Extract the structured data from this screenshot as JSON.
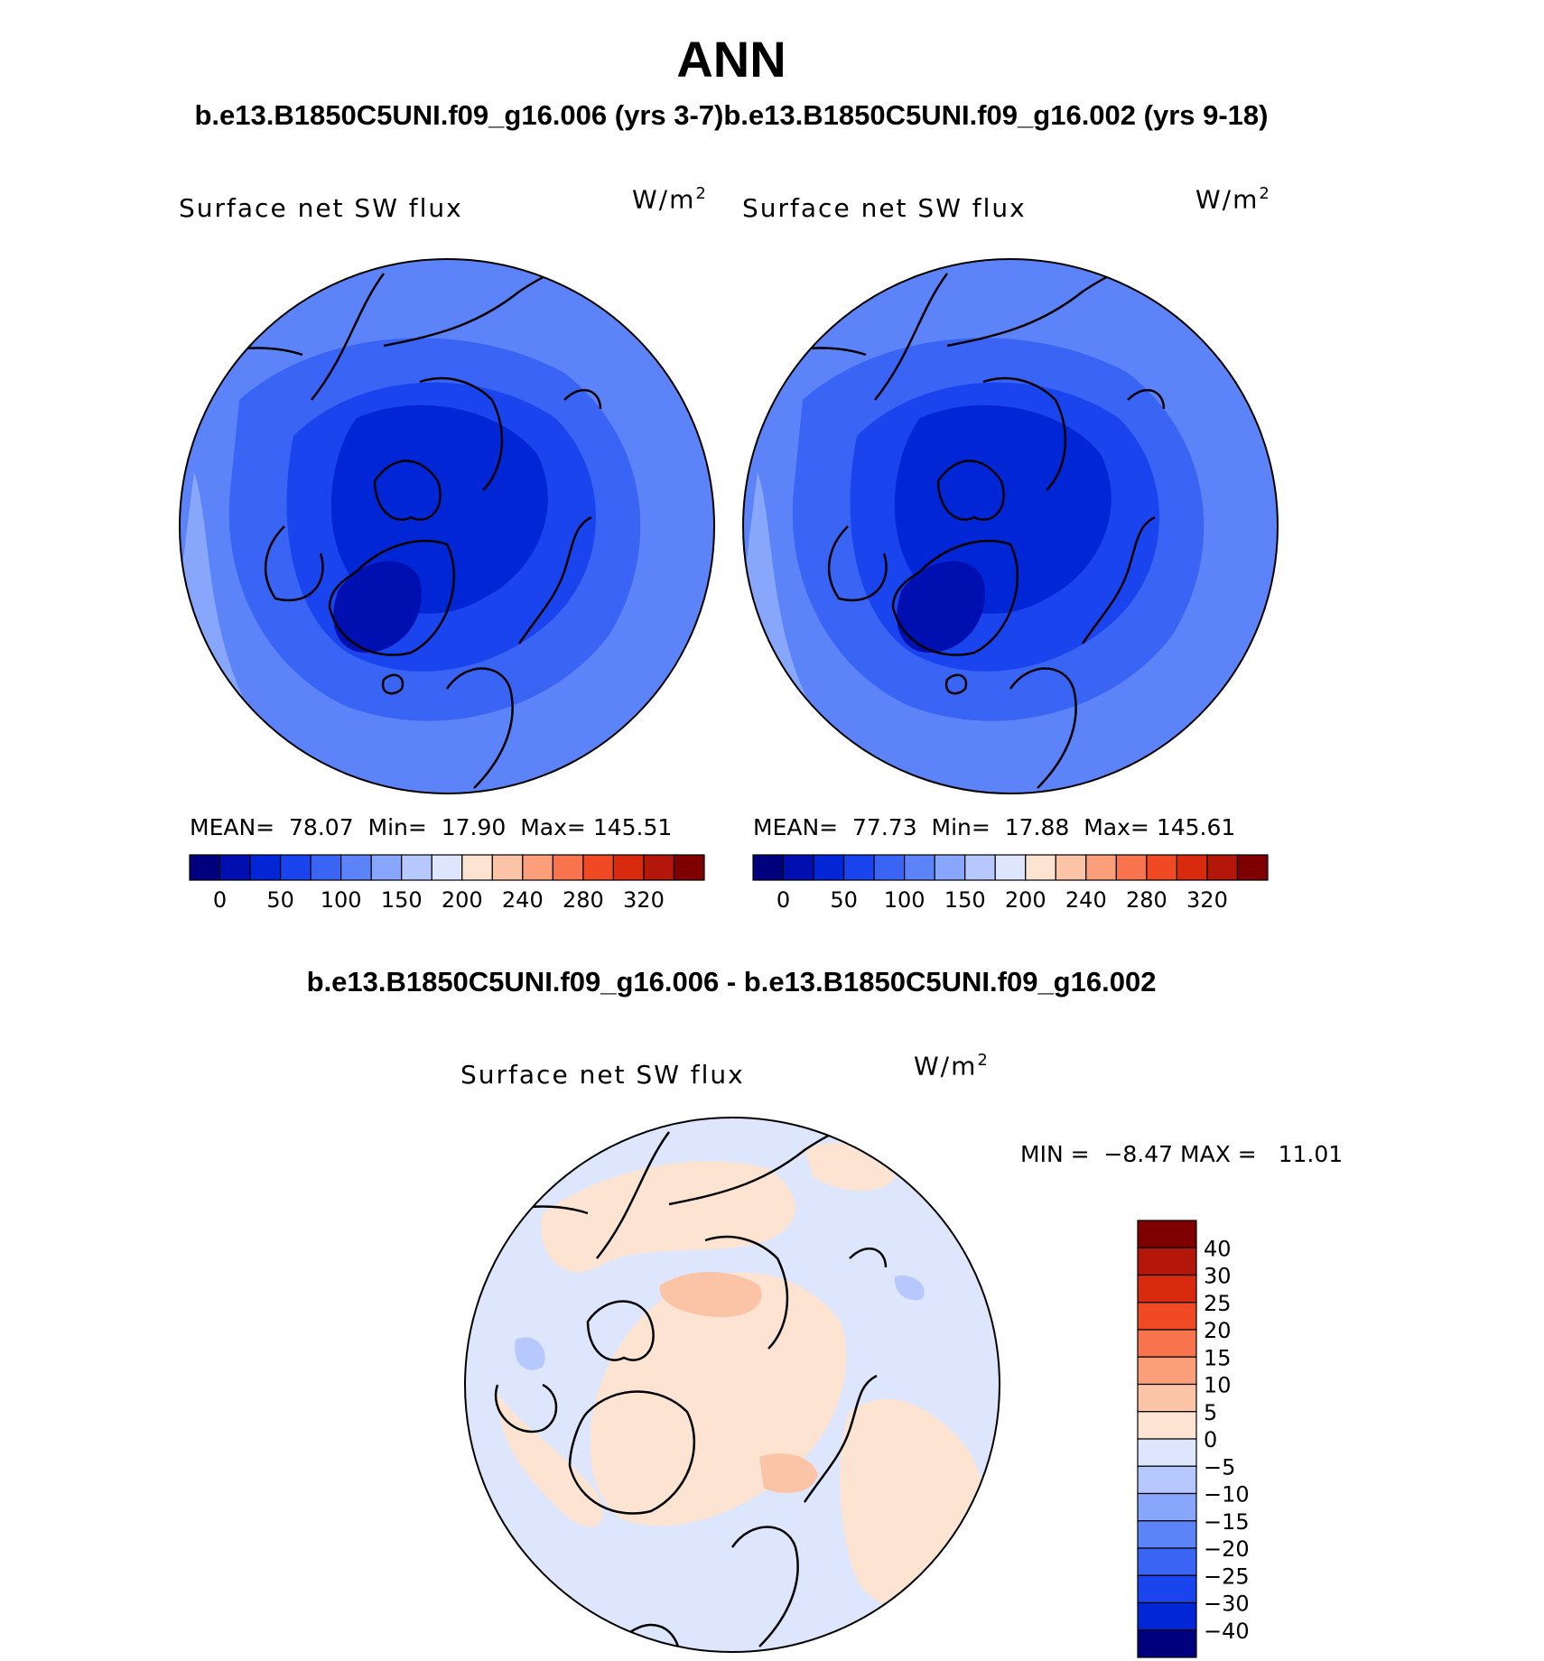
{
  "title": "ANN",
  "subtitle_top": "b.e13.B1850C5UNI.f09_g16.006 (yrs 3-7)b.e13.B1850C5UNI.f09_g16.002 (yrs 9-18)",
  "subtitle_diff": "b.e13.B1850C5UNI.f09_g16.006 - b.e13.B1850C5UNI.f09_g16.002",
  "panels": [
    {
      "label": "Surface net SW flux",
      "unit": "W/m",
      "unit_exp": "2",
      "stats": {
        "mean_label": "MEAN=",
        "mean": "78.07",
        "min_label": "Min=",
        "min": "17.90",
        "max_label": "Max=",
        "max": "145.51"
      }
    },
    {
      "label": "Surface net SW flux",
      "unit": "W/m",
      "unit_exp": "2",
      "stats": {
        "mean_label": "MEAN=",
        "mean": "77.73",
        "min_label": "Min=",
        "min": "17.88",
        "max_label": "Max=",
        "max": "145.61"
      }
    }
  ],
  "diff_panel": {
    "label": "Surface net SW flux",
    "unit": "W/m",
    "unit_exp": "2",
    "min_label": "MIN =",
    "min": "−8.47",
    "max_label": "MAX =",
    "max": "11.01"
  },
  "chart_data": [
    {
      "type": "heatmap",
      "title": "Surface net SW flux",
      "projection": "north polar stereographic",
      "units": "W/m2",
      "summary": {
        "mean": 78.07,
        "min": 17.9,
        "max": 145.51
      },
      "colorbar": {
        "orientation": "horizontal",
        "tick_labels": [
          "0",
          "50",
          "100",
          "150",
          "200",
          "240",
          "280",
          "320"
        ],
        "colors": [
          "#00007f",
          "#0010b0",
          "#0026d6",
          "#1a44ee",
          "#3a64f4",
          "#5c84f8",
          "#88a6fb",
          "#b6c8fd",
          "#dde6fd",
          "#fde4d2",
          "#fcc4a6",
          "#fb9f7a",
          "#f7744c",
          "#f04a24",
          "#d82a0e",
          "#b2170a",
          "#7f0000"
        ]
      }
    },
    {
      "type": "heatmap",
      "title": "Surface net SW flux",
      "projection": "north polar stereographic",
      "units": "W/m2",
      "summary": {
        "mean": 77.73,
        "min": 17.88,
        "max": 145.61
      },
      "colorbar": {
        "orientation": "horizontal",
        "tick_labels": [
          "0",
          "50",
          "100",
          "150",
          "200",
          "240",
          "280",
          "320"
        ],
        "colors": [
          "#00007f",
          "#0010b0",
          "#0026d6",
          "#1a44ee",
          "#3a64f4",
          "#5c84f8",
          "#88a6fb",
          "#b6c8fd",
          "#dde6fd",
          "#fde4d2",
          "#fcc4a6",
          "#fb9f7a",
          "#f7744c",
          "#f04a24",
          "#d82a0e",
          "#b2170a",
          "#7f0000"
        ]
      }
    },
    {
      "type": "heatmap",
      "title": "Surface net SW flux",
      "projection": "north polar stereographic",
      "units": "W/m2",
      "summary": {
        "min": -8.47,
        "max": 11.01
      },
      "colorbar": {
        "orientation": "vertical",
        "tick_labels": [
          "40",
          "30",
          "25",
          "20",
          "15",
          "10",
          "5",
          "0",
          "−5",
          "−10",
          "−15",
          "−20",
          "−25",
          "−30",
          "−40"
        ],
        "colors": [
          "#7f0000",
          "#b2170a",
          "#d82a0e",
          "#f04a24",
          "#f7744c",
          "#fb9f7a",
          "#fcc4a6",
          "#fde4d2",
          "#dde6fd",
          "#b6c8fd",
          "#88a6fb",
          "#5c84f8",
          "#3a64f4",
          "#1a44ee",
          "#0026d6",
          "#00007f"
        ]
      }
    }
  ]
}
